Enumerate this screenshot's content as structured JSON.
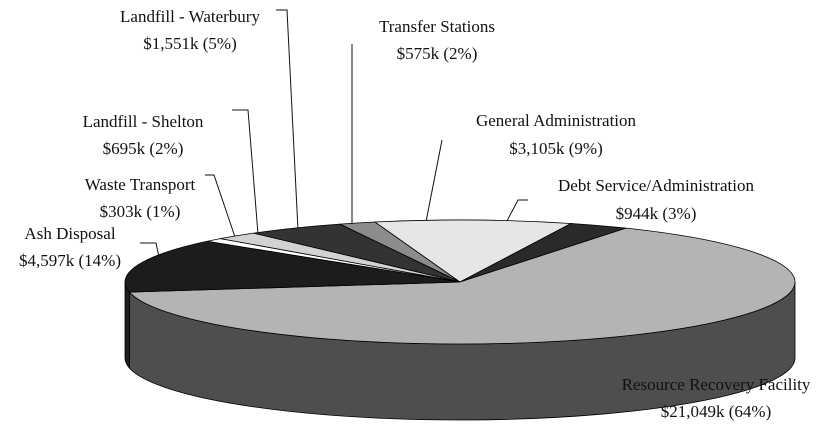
{
  "chart_data": {
    "type": "pie",
    "categories": [
      "Transfer Stations",
      "General Administration",
      "Debt Service/Administration",
      "Resource Recovery Facility",
      "Ash Disposal",
      "Waste Transport",
      "Landfill - Shelton",
      "Landfill - Waterbury"
    ],
    "values": [
      575,
      3105,
      944,
      21049,
      4597,
      303,
      695,
      1551
    ],
    "value_labels": [
      "$575k (2%)",
      "$3,105k (9%)",
      "$944k (3%)",
      "$21,049k (64%)",
      "$4,597k (14%)",
      "$303k (1%)",
      "$695k (2%)",
      "$1,551k (5%)"
    ],
    "colors": [
      "#8c8c8c",
      "#e6e6e6",
      "#2a2a2a",
      "#b4b4b4",
      "#1c1c1c",
      "#ffffff",
      "#d2d2d2",
      "#333333"
    ]
  }
}
